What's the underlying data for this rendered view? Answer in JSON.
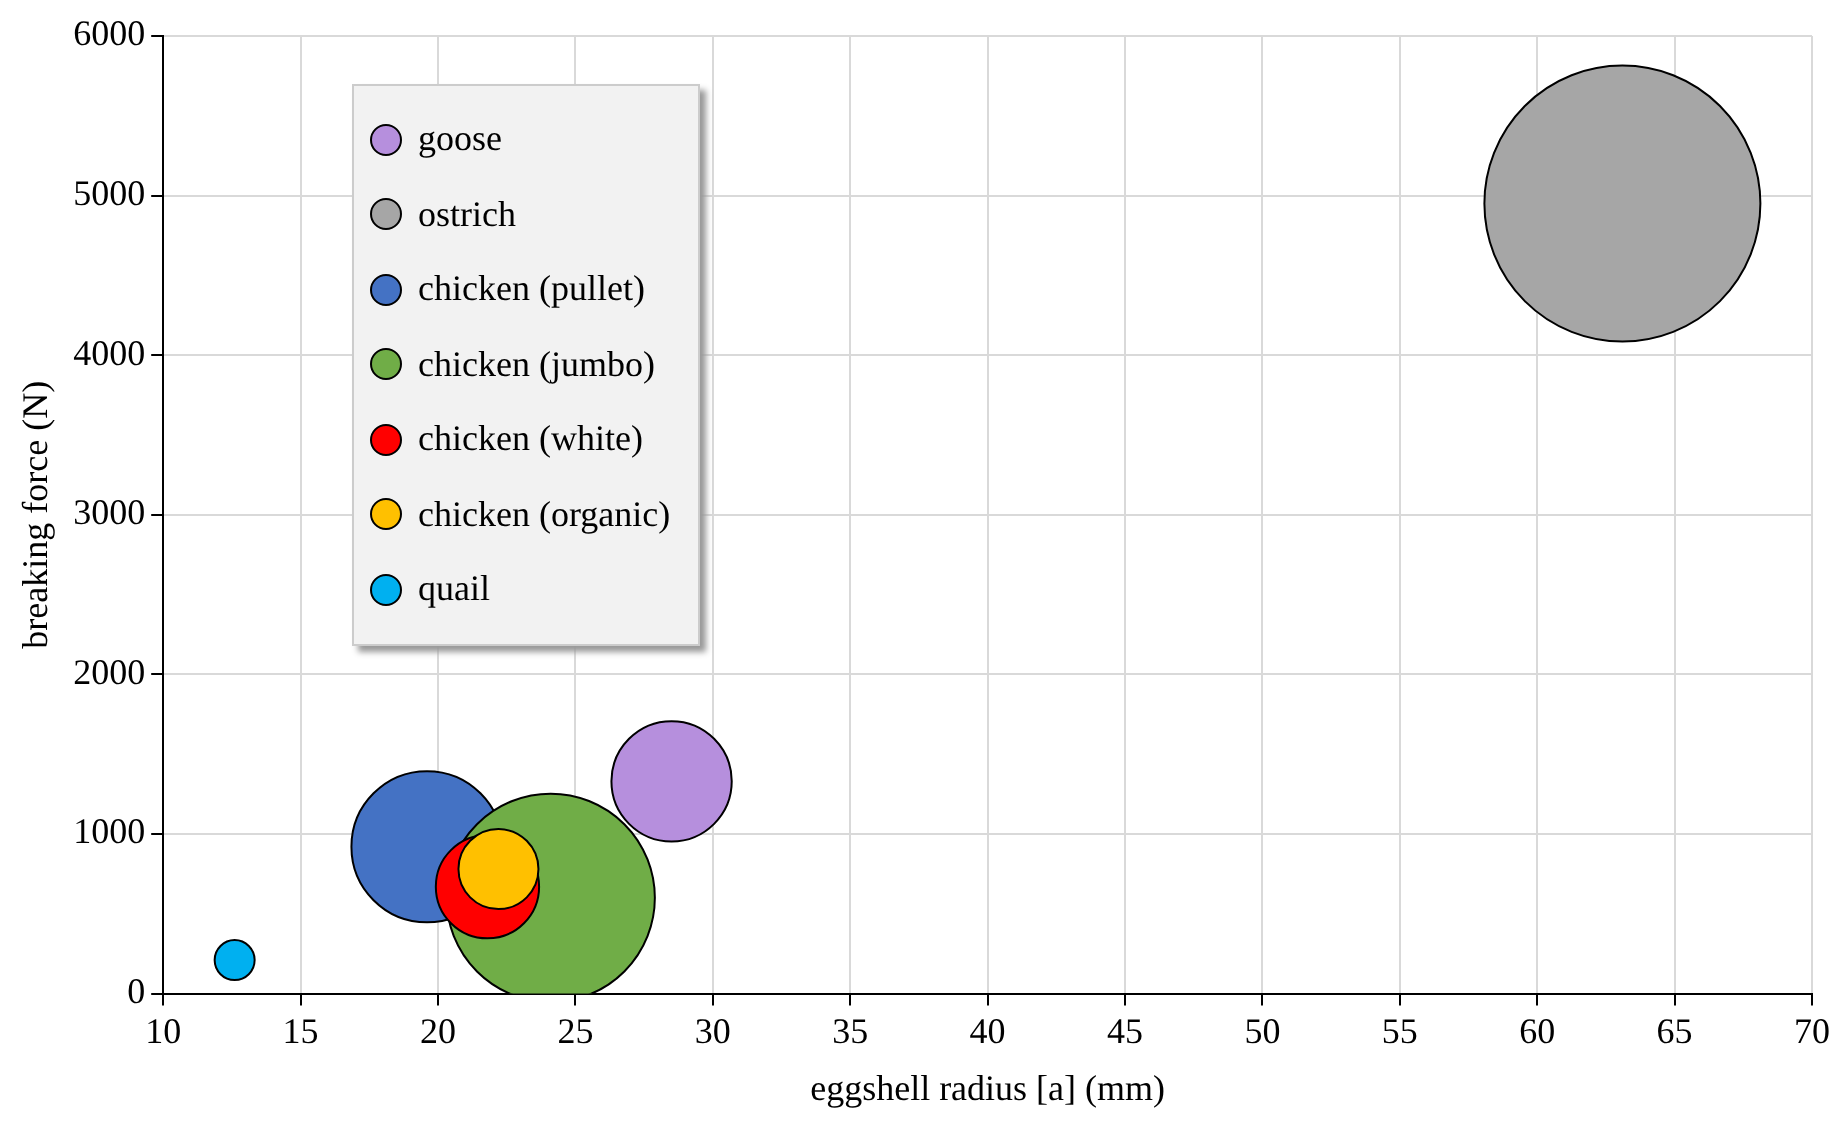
{
  "chart_data": {
    "type": "bubble",
    "xlabel": "eggshell radius [a] (mm)",
    "ylabel": "breaking force (N)",
    "series": [
      {
        "name": "goose",
        "color": "#b68fdd",
        "x": [
          28.5
        ],
        "values": [
          1330
        ],
        "sizes": [
          0.19
        ]
      },
      {
        "name": "ostrich",
        "color": "#a6a6a6",
        "x": [
          63.1
        ],
        "values": [
          4950
        ],
        "sizes": [
          1
        ]
      },
      {
        "name": "chicken (pullet)",
        "color": "#4472c4",
        "x": [
          19.6
        ],
        "values": [
          920
        ],
        "sizes": [
          0.3
        ]
      },
      {
        "name": "chicken (jumbo)",
        "color": "#70ad47",
        "x": [
          24.1
        ],
        "values": [
          600
        ],
        "sizes": [
          0.57
        ]
      },
      {
        "name": "chicken (white)",
        "color": "#ff0000",
        "x": [
          21.8
        ],
        "values": [
          670
        ],
        "sizes": [
          0.14
        ]
      },
      {
        "name": "chicken (organic)",
        "color": "#ffc000",
        "x": [
          22.2
        ],
        "values": [
          780
        ],
        "sizes": [
          0.084
        ]
      },
      {
        "name": "quail",
        "color": "#00b0f0",
        "x": [
          12.6
        ],
        "values": [
          210
        ],
        "sizes": [
          0.021
        ]
      }
    ],
    "xlim": [
      10,
      70
    ],
    "xticks": [
      10,
      15,
      20,
      25,
      30,
      35,
      40,
      45,
      50,
      55,
      60,
      65,
      70
    ],
    "ylim": [
      0,
      6000
    ],
    "yticks": [
      0,
      1000,
      2000,
      3000,
      4000,
      5000,
      6000
    ],
    "grid": true,
    "legend": "top left"
  }
}
